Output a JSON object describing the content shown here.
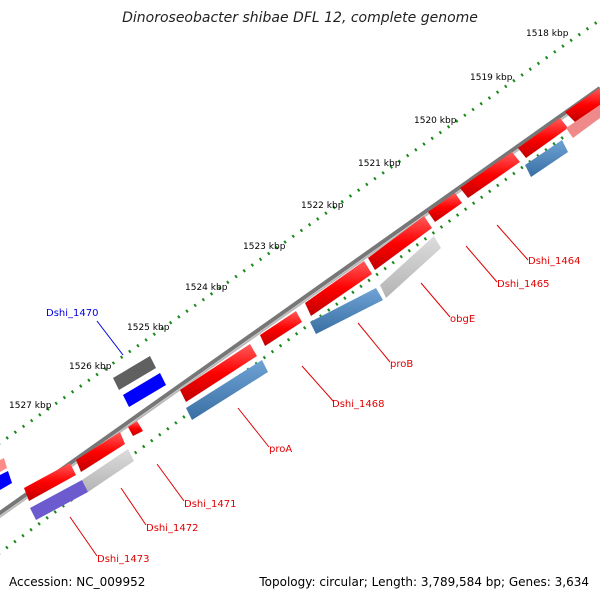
{
  "title": "Dinoroseobacter shibae DFL 12, complete genome",
  "accession": "Accession: NC_009952",
  "topology": "Topology: circular; Length: 3,789,584 bp; Genes: 3,634",
  "ticks": [
    {
      "label": "1518 kbp"
    },
    {
      "label": "1519 kbp"
    },
    {
      "label": "1520 kbp"
    },
    {
      "label": "1521 kbp"
    },
    {
      "label": "1522 kbp"
    },
    {
      "label": "1523 kbp"
    },
    {
      "label": "1524 kbp"
    },
    {
      "label": "1525 kbp"
    },
    {
      "label": "1526 kbp"
    },
    {
      "label": "1527 kbp"
    }
  ],
  "gene_labels": [
    {
      "name": "Dshi_1464",
      "color": "#e00000"
    },
    {
      "name": "Dshi_1465",
      "color": "#e00000"
    },
    {
      "name": "obgE",
      "color": "#e00000"
    },
    {
      "name": "proB",
      "color": "#e00000"
    },
    {
      "name": "Dshi_1468",
      "color": "#e00000"
    },
    {
      "name": "proA",
      "color": "#e00000"
    },
    {
      "name": "Dshi_1470",
      "color": "#0000dd"
    },
    {
      "name": "Dshi_1471",
      "color": "#e00000"
    },
    {
      "name": "Dshi_1472",
      "color": "#e00000"
    },
    {
      "name": "Dshi_1473",
      "color": "#e00000"
    }
  ],
  "colors": {
    "gene_red": "#ff0000",
    "gene_blue": "#0000ff",
    "gene_steelblue": "#4a86c0",
    "gene_gray": "#c8c8c8",
    "gene_darkgray": "#606060",
    "gene_purple": "#6b5bcf",
    "tick_green": "#1a8a1a",
    "backbone": "#8a8a8a"
  }
}
